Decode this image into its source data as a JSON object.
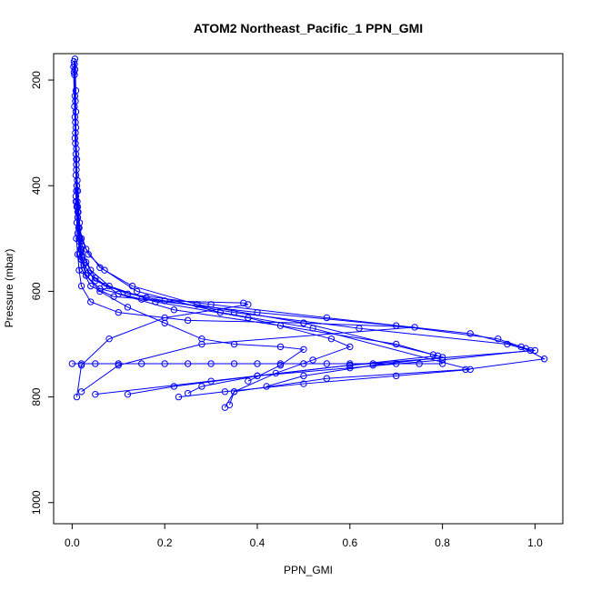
{
  "chart_data": {
    "type": "scatter",
    "title": "ATOM2 Northeast_Pacific_1 PPN_GMI",
    "xlabel": "PPN_GMI",
    "ylabel": "Pressure (mbar)",
    "xlim": [
      -0.04,
      1.06
    ],
    "ylim": [
      1040,
      150
    ],
    "y_reversed": true,
    "xticks": [
      0.0,
      0.2,
      0.4,
      0.6,
      0.8,
      1.0
    ],
    "xtick_labels": [
      "0.0",
      "0.2",
      "0.4",
      "0.6",
      "0.8",
      "1.0"
    ],
    "yticks": [
      200,
      400,
      600,
      800,
      1000
    ],
    "ytick_labels": [
      "200",
      "400",
      "600",
      "800",
      "1000"
    ],
    "grid": false,
    "legend": "none",
    "color": "#0000ff",
    "series": [
      {
        "x": [
          0.006,
          0.008,
          0.007,
          0.009,
          0.008,
          0.01,
          0.009,
          0.012,
          0.015,
          0.02,
          0.04,
          0.1,
          0.25,
          0.5,
          0.74,
          0.28,
          0.1,
          0.02
        ],
        "y": [
          160,
          220,
          300,
          360,
          420,
          470,
          500,
          530,
          560,
          590,
          620,
          640,
          655,
          660,
          668,
          700,
          740,
          790
        ]
      },
      {
        "x": [
          0.004,
          0.006,
          0.008,
          0.01,
          0.009,
          0.012,
          0.015,
          0.02,
          0.03,
          0.06,
          0.15,
          0.4,
          0.7,
          0.92,
          0.98,
          1.0,
          0.6,
          0.3,
          0.05
        ],
        "y": [
          165,
          230,
          290,
          350,
          410,
          460,
          500,
          540,
          570,
          595,
          615,
          640,
          665,
          690,
          708,
          712,
          740,
          770,
          795
        ]
      },
      {
        "x": [
          0.005,
          0.007,
          0.006,
          0.009,
          0.011,
          0.014,
          0.018,
          0.025,
          0.05,
          0.12,
          0.3,
          0.55,
          0.86,
          0.97,
          1.02,
          0.85,
          0.55,
          0.35,
          0.33
        ],
        "y": [
          170,
          240,
          310,
          370,
          430,
          480,
          520,
          550,
          580,
          605,
          625,
          650,
          680,
          705,
          728,
          748,
          765,
          790,
          820
        ]
      },
      {
        "x": [
          0.003,
          0.005,
          0.007,
          0.008,
          0.01,
          0.012,
          0.016,
          0.022,
          0.04,
          0.09,
          0.2,
          0.37,
          0.38,
          0.2,
          0.08,
          0.02,
          0.01
        ],
        "y": [
          175,
          250,
          320,
          380,
          440,
          490,
          530,
          560,
          590,
          610,
          618,
          622,
          625,
          650,
          690,
          740,
          800
        ]
      },
      {
        "x": [
          0.006,
          0.008,
          0.009,
          0.011,
          0.013,
          0.017,
          0.02,
          0.035,
          0.07,
          0.16,
          0.35,
          0.62,
          0.94,
          0.99,
          0.8,
          0.6,
          0.4,
          0.28,
          0.25
        ],
        "y": [
          180,
          260,
          330,
          390,
          450,
          500,
          535,
          565,
          590,
          612,
          640,
          670,
          700,
          712,
          730,
          745,
          760,
          780,
          793
        ]
      },
      {
        "x": [
          0.004,
          0.006,
          0.008,
          0.01,
          0.012,
          0.015,
          0.02,
          0.03,
          0.06,
          0.12,
          0.2,
          0.28,
          0.35,
          0.45,
          0.5,
          0.45,
          0.38
        ],
        "y": [
          185,
          270,
          340,
          400,
          460,
          505,
          540,
          570,
          600,
          630,
          660,
          690,
          700,
          705,
          710,
          740,
          770
        ]
      },
      {
        "x": [
          0.005,
          0.007,
          0.009,
          0.012,
          0.016,
          0.022,
          0.03,
          0.05,
          0.1,
          0.22,
          0.45,
          0.7,
          0.78,
          0.8,
          0.65,
          0.5,
          0.42
        ],
        "y": [
          190,
          280,
          350,
          410,
          470,
          515,
          545,
          575,
          605,
          635,
          665,
          700,
          720,
          725,
          740,
          760,
          780
        ]
      },
      {
        "x": [
          0.01,
          0.012,
          0.015,
          0.02,
          0.04,
          0.08,
          0.18,
          0.38,
          0.56,
          0.6,
          0.52,
          0.44,
          0.35,
          0.34
        ],
        "y": [
          400,
          440,
          480,
          520,
          560,
          590,
          620,
          650,
          690,
          705,
          730,
          755,
          790,
          815
        ]
      },
      {
        "x": [
          0.008,
          0.015,
          0.03,
          0.06,
          0.13,
          0.27,
          0.5,
          0.79,
          0.6,
          0.4,
          0.22,
          0.12
        ],
        "y": [
          430,
          480,
          520,
          555,
          590,
          625,
          660,
          722,
          740,
          760,
          780,
          795
        ]
      },
      {
        "x": [
          0.012,
          0.02,
          0.035,
          0.07,
          0.14,
          0.32,
          0.52,
          0.86,
          0.7,
          0.5,
          0.33,
          0.23
        ],
        "y": [
          450,
          500,
          530,
          560,
          600,
          640,
          670,
          748,
          760,
          775,
          790,
          800
        ]
      },
      {
        "x": [
          0.0,
          0.02,
          0.05,
          0.1,
          0.15,
          0.2,
          0.25,
          0.3,
          0.35,
          0.4,
          0.45,
          0.5,
          0.55,
          0.6,
          0.65,
          0.7,
          0.75,
          0.8
        ],
        "y": [
          737,
          737,
          737,
          737,
          737,
          737,
          737,
          737,
          737,
          737,
          737,
          737,
          737,
          737,
          737,
          737,
          737,
          737
        ]
      }
    ]
  }
}
